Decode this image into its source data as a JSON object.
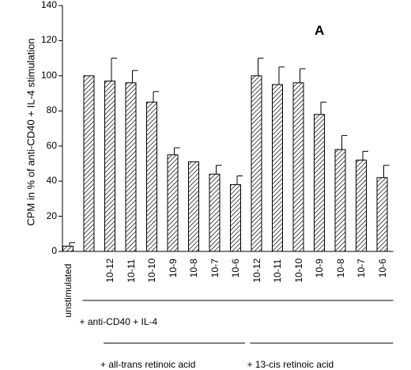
{
  "chart_data": {
    "type": "bar",
    "panel_label": "A",
    "ylabel": "CPM in % of anti-CD40 + IL-4 stimulation",
    "ylim": [
      0,
      140
    ],
    "yticks": [
      0,
      20,
      40,
      60,
      80,
      100,
      120,
      140
    ],
    "categories": [
      "unstimulated",
      "",
      "10-12",
      "10-11",
      "10-10",
      "10-9",
      "10-8",
      "10-7",
      "10-6",
      "10-12",
      "10-11",
      "10-10",
      "10-9",
      "10-8",
      "10-7",
      "10-6"
    ],
    "values": [
      3,
      100,
      97,
      96,
      85,
      55,
      51,
      44,
      38,
      100,
      95,
      96,
      78,
      58,
      52,
      42
    ],
    "errors": [
      2,
      0,
      13,
      7,
      6,
      4,
      0,
      5,
      5,
      10,
      10,
      8,
      7,
      8,
      5,
      7
    ],
    "groups": [
      {
        "label": "+ anti-CD40 + IL-4",
        "from_index": 1,
        "to_index": 15
      },
      {
        "label": "+ all-trans retinoic acid",
        "from_index": 2,
        "to_index": 8
      },
      {
        "label": "+ 13-cis retinoic acid",
        "from_index": 9,
        "to_index": 15
      }
    ],
    "grid": false,
    "legend": "none"
  },
  "colors": {
    "bar_hatch": "#000000",
    "bar_fill": "#ffffff",
    "axis": "#000000"
  }
}
